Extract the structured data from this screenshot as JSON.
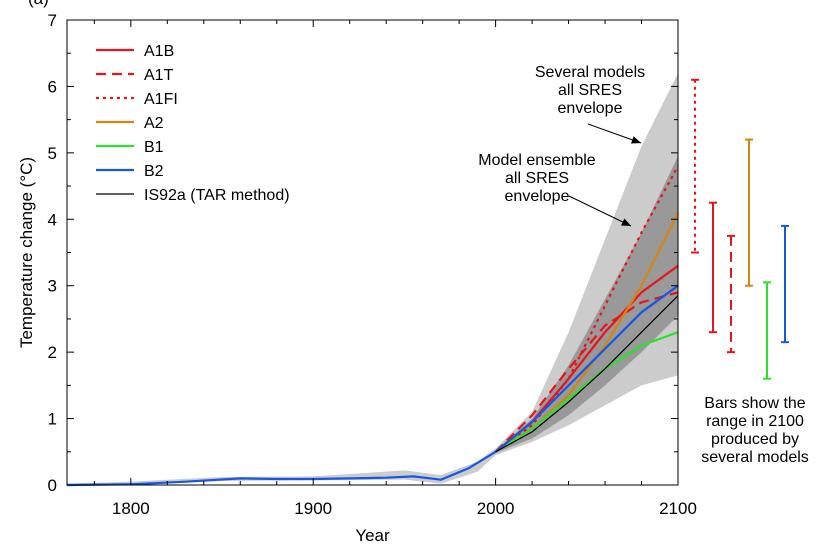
{
  "chart_data": {
    "type": "line",
    "panel_label": "(a)",
    "xlabel": "Year",
    "ylabel": "Temperature change (°C)",
    "xlim": [
      1765,
      2100
    ],
    "ylim": [
      0,
      7
    ],
    "x_ticks": [
      1800,
      1900,
      2000,
      2100
    ],
    "x_tick_labels": [
      "1800",
      "1900",
      "2000",
      "2100"
    ],
    "y_ticks": [
      0,
      1,
      2,
      3,
      4,
      5,
      6,
      7
    ],
    "y_tick_labels": [
      "0",
      "1",
      "2",
      "3",
      "4",
      "5",
      "6",
      "7"
    ],
    "series": [
      {
        "name": "A1B",
        "color": "#e8141b",
        "dash": "solid",
        "x": [
          2000,
          2020,
          2040,
          2060,
          2080,
          2100
        ],
        "y": [
          0.5,
          0.95,
          1.6,
          2.3,
          2.9,
          3.3
        ]
      },
      {
        "name": "A1T",
        "color": "#e8141b",
        "dash": "dashed",
        "x": [
          2000,
          2020,
          2040,
          2060,
          2080,
          2100
        ],
        "y": [
          0.5,
          1.05,
          1.75,
          2.4,
          2.75,
          2.9
        ]
      },
      {
        "name": "A1FI",
        "color": "#e8141b",
        "dash": "dotted",
        "x": [
          2000,
          2020,
          2040,
          2060,
          2080,
          2100
        ],
        "y": [
          0.5,
          0.9,
          1.6,
          2.7,
          3.8,
          4.8
        ]
      },
      {
        "name": "A2",
        "color": "#d4850f",
        "dash": "solid",
        "x": [
          2000,
          2020,
          2040,
          2060,
          2080,
          2100
        ],
        "y": [
          0.5,
          0.85,
          1.35,
          2.1,
          3.0,
          4.1
        ]
      },
      {
        "name": "B1",
        "color": "#2de02d",
        "dash": "solid",
        "x": [
          2000,
          2020,
          2040,
          2060,
          2080,
          2100
        ],
        "y": [
          0.5,
          0.85,
          1.3,
          1.75,
          2.1,
          2.3
        ]
      },
      {
        "name": "B2",
        "color": "#1558e8",
        "dash": "solid",
        "x": [
          1765,
          1800,
          1830,
          1860,
          1880,
          1900,
          1920,
          1940,
          1955,
          1970,
          1985,
          2000,
          2020,
          2040,
          2060,
          2080,
          2100
        ],
        "y": [
          0,
          0.01,
          0.05,
          0.1,
          0.09,
          0.09,
          0.1,
          0.11,
          0.13,
          0.08,
          0.25,
          0.5,
          0.95,
          1.5,
          2.05,
          2.6,
          3.0
        ]
      },
      {
        "name": "IS92a (TAR method)",
        "color": "#000000",
        "dash": "solid",
        "x": [
          2000,
          2020,
          2040,
          2060,
          2080,
          2100
        ],
        "y": [
          0.5,
          0.8,
          1.25,
          1.75,
          2.3,
          2.85
        ]
      }
    ],
    "envelopes": [
      {
        "name": "Several models all SRES envelope",
        "color": "#cccccc",
        "x": [
          1765,
          1800,
          1850,
          1900,
          1950,
          1970,
          1990,
          2000,
          2020,
          2040,
          2060,
          2080,
          2100
        ],
        "upper": [
          0.02,
          0.05,
          0.12,
          0.13,
          0.22,
          0.15,
          0.35,
          0.55,
          1.1,
          2.3,
          3.7,
          5.1,
          6.2
        ],
        "lower": [
          -0.02,
          0.0,
          0.06,
          0.07,
          0.08,
          0.02,
          0.2,
          0.45,
          0.65,
          0.9,
          1.2,
          1.5,
          1.65
        ]
      },
      {
        "name": "Model ensemble all SRES envelope",
        "color": "#999999",
        "x": [
          2000,
          2020,
          2040,
          2060,
          2080,
          2100
        ],
        "upper": [
          0.52,
          1.0,
          1.8,
          2.8,
          3.8,
          4.95
        ],
        "lower": [
          0.48,
          0.7,
          1.05,
          1.5,
          2.0,
          2.55
        ]
      }
    ],
    "range_bars": [
      {
        "name": "A1FI",
        "color": "#e8141b",
        "dash": "dotted",
        "low": 3.5,
        "high": 6.1
      },
      {
        "name": "A1B",
        "color": "#e8141b",
        "dash": "solid",
        "low": 2.3,
        "high": 4.25
      },
      {
        "name": "A1T",
        "color": "#e8141b",
        "dash": "dashed",
        "low": 2.0,
        "high": 3.75
      },
      {
        "name": "A2",
        "color": "#d4850f",
        "dash": "solid",
        "low": 3.0,
        "high": 5.2
      },
      {
        "name": "B1",
        "color": "#2de02d",
        "dash": "solid",
        "low": 1.6,
        "high": 3.05
      },
      {
        "name": "B2",
        "color": "#1558e8",
        "dash": "solid",
        "low": 2.15,
        "high": 3.9
      }
    ],
    "annotations": {
      "several_models": [
        "Several models",
        "all SRES",
        "envelope"
      ],
      "model_ensemble": [
        "Model ensemble",
        "all SRES",
        "envelope"
      ],
      "bars_note": [
        "Bars show the",
        "range in 2100",
        "produced by",
        "several models"
      ]
    },
    "legend_position": "top-left",
    "grid": false
  }
}
